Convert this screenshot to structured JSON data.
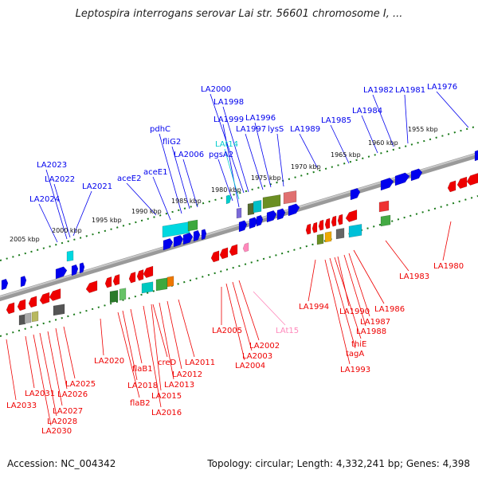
{
  "title": "Leptospira interrogans serovar Lai str. 56601 chromosome I, ...",
  "footer": {
    "accession": "Accession: NC_004342",
    "summary": "Topology: circular; Length: 4,332,241 bp; Genes: 4,398"
  },
  "colors": {
    "forward": "#0000ee",
    "reverse": "#ee0000",
    "ruler": "#1a7a1a",
    "backbone": "#888888",
    "trna_forward": "#00cccc",
    "trna_reverse": "#ff88bb"
  },
  "ruler_ticks": [
    "1955 kbp",
    "1960 kbp",
    "1965 kbp",
    "1970 kbp",
    "1975 kbp",
    "1980 kbp",
    "1985 kbp",
    "1990 kbp",
    "1995 kbp",
    "2000 kbp",
    "2005 kbp"
  ],
  "forward_labels": [
    "LA2000",
    "LA1998",
    "LA1999",
    "LA1996",
    "LA1997",
    "lysS",
    "LA1989",
    "LA1985",
    "LA1984",
    "LA1982",
    "LA1981",
    "LA1976",
    "pdhC",
    "fliG2",
    "LA2006",
    "LAt14",
    "pgsA2",
    "aceE1",
    "aceE2",
    "LA2023",
    "LA2022",
    "LA2024",
    "LA2021"
  ],
  "reverse_labels": [
    "LA1980",
    "LA1983",
    "LA1986",
    "LA1987",
    "LA1988",
    "LA1990",
    "LA1994",
    "thiE",
    "tagA",
    "LA1993",
    "LA2002",
    "LA2003",
    "LA2004",
    "LA2005",
    "LAt15",
    "LA2011",
    "LA2012",
    "LA2013",
    "LA2015",
    "LA2016",
    "creD",
    "flaB1",
    "LA2018",
    "flaB2",
    "LA2020",
    "LA2025",
    "LA2026",
    "LA2027",
    "LA2028",
    "LA2030",
    "LA2031",
    "LA2033"
  ]
}
